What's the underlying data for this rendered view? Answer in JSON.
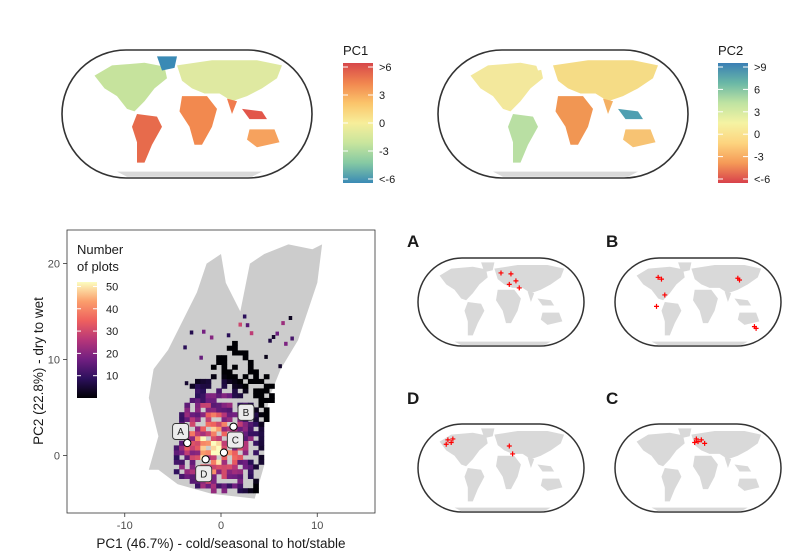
{
  "top_maps": [
    {
      "legend_title": "PC1",
      "legend_ticks": [
        ">6",
        "3",
        "0",
        "-3",
        "<-6"
      ],
      "scale_top_to_bottom": [
        "#d7474a",
        "#f1864f",
        "#fbc46a",
        "#f7ee9a",
        "#c8e59d",
        "#85c9a3",
        "#3a8ab5"
      ]
    },
    {
      "legend_title": "PC2",
      "legend_ticks": [
        ">9",
        "6",
        "3",
        "0",
        "-3",
        "<-6"
      ],
      "scale_top_to_bottom": [
        "#3a7fb5",
        "#6ab8a6",
        "#bfe3a2",
        "#f5f3a3",
        "#fdd47f",
        "#f59a57",
        "#d8414b"
      ]
    }
  ],
  "chart_data": {
    "type": "heatmap",
    "xlabel": "PC1 (46.7%) - cold/seasonal to hot/stable",
    "ylabel": "PC2 (22.8%) - dry to wet",
    "xlim": [
      -16,
      16
    ],
    "ylim": [
      -6,
      23.5
    ],
    "x_ticks": [
      -10,
      0,
      10
    ],
    "y_ticks": [
      0,
      10,
      20
    ],
    "grid": false,
    "legend": {
      "title_line1": "Number",
      "title_line2": "of plots",
      "ticks": [
        50,
        40,
        30,
        20,
        10
      ],
      "range": [
        0,
        52
      ],
      "placement": "top-left inside"
    },
    "background_color": "#cccccc",
    "colormap": [
      "#000004",
      "#2c105c",
      "#711f81",
      "#b63679",
      "#ee605e",
      "#fb9e6c",
      "#fcfdbf"
    ],
    "labelled_points": [
      {
        "label": "A",
        "x": -4.2,
        "y": 2.5
      },
      {
        "label": "B",
        "x": 2.6,
        "y": 4.5
      },
      {
        "label": "C",
        "x": 1.5,
        "y": 1.6
      },
      {
        "label": "D",
        "x": -1.8,
        "y": -1.9
      }
    ],
    "open_circles": [
      {
        "x": -3.5,
        "y": 1.3
      },
      {
        "x": 1.3,
        "y": 3.0
      },
      {
        "x": 0.3,
        "y": 0.3
      },
      {
        "x": -1.6,
        "y": -0.4
      }
    ]
  },
  "mini_maps": [
    {
      "letter": "A",
      "marker_color": "#ff0000"
    },
    {
      "letter": "B",
      "marker_color": "#ff0000"
    },
    {
      "letter": "D",
      "marker_color": "#ff0000"
    },
    {
      "letter": "C",
      "marker_color": "#ff0000"
    }
  ]
}
